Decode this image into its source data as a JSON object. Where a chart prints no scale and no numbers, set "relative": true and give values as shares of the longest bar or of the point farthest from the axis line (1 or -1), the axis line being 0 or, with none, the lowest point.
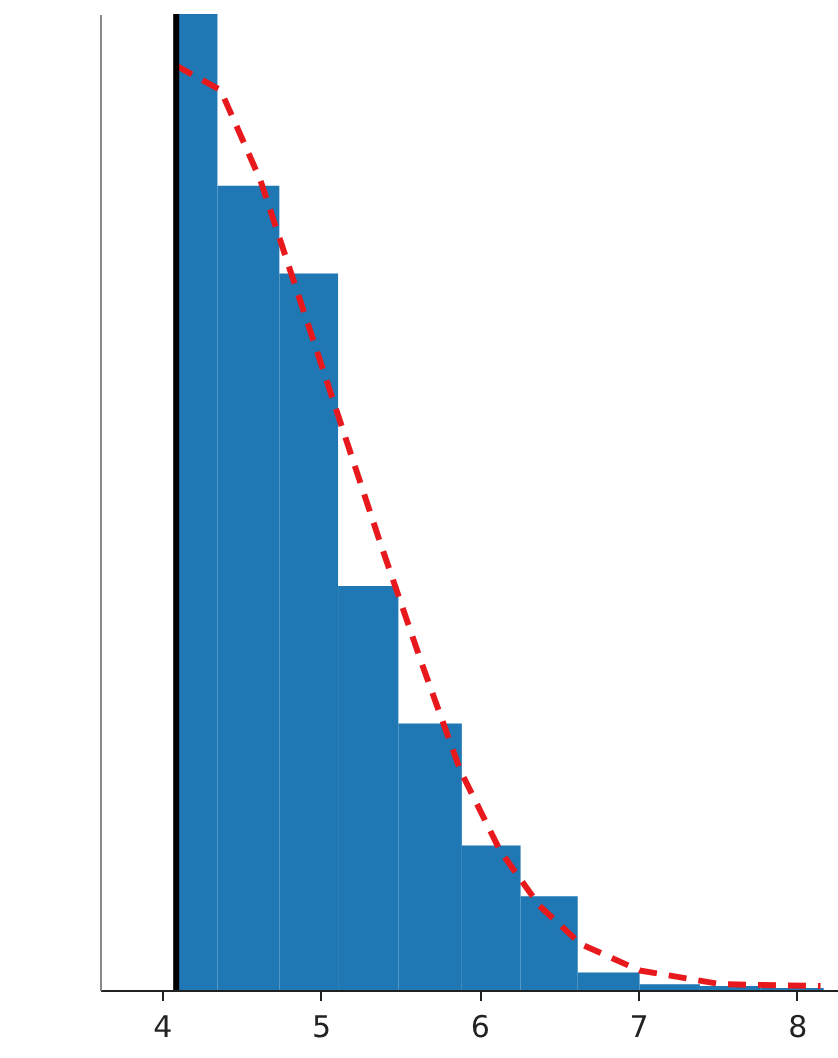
{
  "chart_data": {
    "type": "histogram",
    "relative": true,
    "xlim": [
      3.61,
      8.26
    ],
    "xticks": [
      4,
      5,
      6,
      7,
      8
    ],
    "grid": false,
    "bins": [
      4.09,
      4.35,
      4.74,
      5.11,
      5.49,
      5.89,
      6.26,
      6.62,
      7.01,
      7.39,
      7.77,
      8.17
    ],
    "series": [
      {
        "color": "#1f77b4",
        "values": [
          1,
          0.824,
          0.734,
          0.414,
          0.273,
          0.148,
          0.096,
          0.018,
          0.006,
          0.004,
          0.002
        ]
      },
      {
        "type": "line",
        "color": "#e8191c",
        "line_style": "dashed",
        "marker": "none",
        "x": [
          4.09,
          4.37,
          4.62,
          4.87,
          5.12,
          5.37,
          5.63,
          5.88,
          6.13,
          6.38,
          6.64,
          7.01,
          7.52,
          8.15
        ],
        "values": [
          0.947,
          0.922,
          0.83,
          0.707,
          0.584,
          0.461,
          0.338,
          0.225,
          0.143,
          0.086,
          0.047,
          0.02,
          0.006,
          0.004
        ]
      }
    ],
    "ref_lines": [
      {
        "axis": "x",
        "value": 4.09,
        "color": "#000000",
        "line_style": "solid"
      }
    ]
  }
}
